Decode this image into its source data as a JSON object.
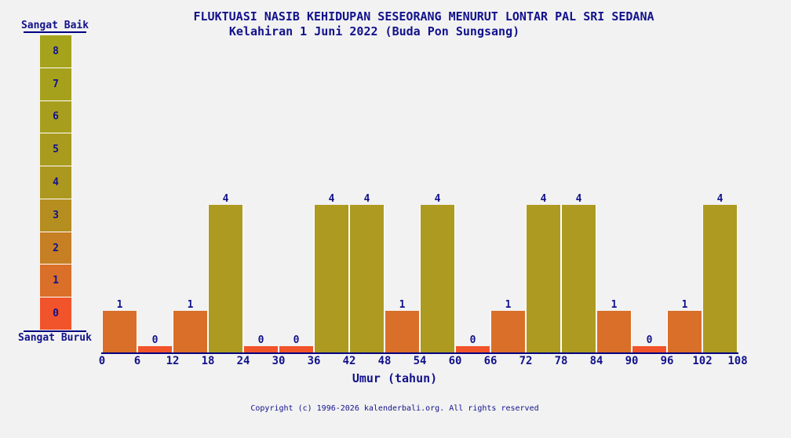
{
  "page": {
    "background": "#f2f2f2",
    "text_color": "#12128c",
    "axis_color": "#000080"
  },
  "header": {
    "title": "FLUKTUASI NASIB KEHIDUPAN SESEORANG MENURUT LONTAR PAL SRI SEDANA",
    "subtitle": "Kelahiran 1 Juni 2022 (Buda Pon Sungsang)"
  },
  "scale": {
    "top_label": "Sangat Baik",
    "bottom_label": "Sangat Buruk",
    "levels": [
      {
        "value": "8",
        "color": "#a5a31c"
      },
      {
        "value": "7",
        "color": "#a6a11d"
      },
      {
        "value": "6",
        "color": "#a89e1d"
      },
      {
        "value": "5",
        "color": "#a99b1e"
      },
      {
        "value": "4",
        "color": "#ad981f"
      },
      {
        "value": "3",
        "color": "#b58e20"
      },
      {
        "value": "2",
        "color": "#c67f23"
      },
      {
        "value": "1",
        "color": "#d96f28"
      },
      {
        "value": "0",
        "color": "#f1532a"
      }
    ]
  },
  "chart_data": {
    "type": "bar",
    "title": "FLUKTUASI NASIB KEHIDUPAN SESEORANG MENURUT LONTAR PAL SRI SEDANA",
    "subtitle": "Kelahiran 1 Juni 2022 (Buda Pon Sungsang)",
    "xlabel": "Umur (tahun)",
    "ylabel": "",
    "ylim": [
      0,
      8
    ],
    "grid": false,
    "legend_position": "left",
    "bin_width_years": 6,
    "x_ticks": [
      "0",
      "6",
      "12",
      "18",
      "24",
      "30",
      "36",
      "42",
      "48",
      "54",
      "60",
      "66",
      "72",
      "78",
      "84",
      "90",
      "96",
      "102",
      "108"
    ],
    "categories": [
      "0-6",
      "6-12",
      "12-18",
      "18-24",
      "24-30",
      "30-36",
      "36-42",
      "42-48",
      "48-54",
      "54-60",
      "60-66",
      "66-72",
      "72-78",
      "78-84",
      "84-90",
      "90-96",
      "96-102",
      "102-108"
    ],
    "values": [
      1,
      0,
      1,
      4,
      0,
      0,
      4,
      4,
      1,
      4,
      0,
      1,
      4,
      4,
      1,
      0,
      1,
      4
    ],
    "value_colors": {
      "0": "#f1532a",
      "1": "#d96f28",
      "4": "#ad9a21"
    }
  },
  "footer": {
    "copyright": "Copyright (c) 1996-2026 kalenderbali.org. All rights reserved"
  }
}
